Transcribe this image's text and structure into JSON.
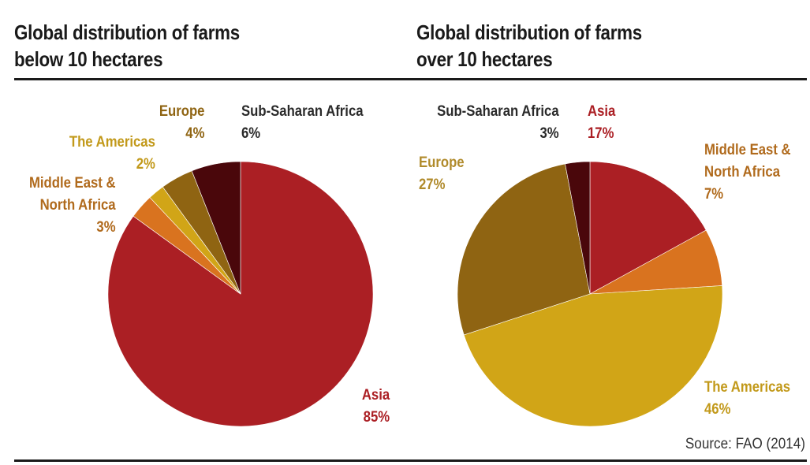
{
  "source": "Source: FAO (2014)",
  "chart_data": [
    {
      "type": "pie",
      "title_lines": [
        "Global distribution of farms",
        "below 10 hectares"
      ],
      "slices": [
        {
          "name": "Asia",
          "value": 85,
          "label": "85%",
          "color": "#ab1f24",
          "label_color": "#ab1f24"
        },
        {
          "name_lines": [
            "Middle East &",
            "North Africa"
          ],
          "value": 3,
          "label": "3%",
          "color": "#d9731f",
          "label_color": "#b06a1c"
        },
        {
          "name": "The Americas",
          "value": 2,
          "label": "2%",
          "color": "#d1a517",
          "label_color": "#c2991a"
        },
        {
          "name": "Europe",
          "value": 4,
          "label": "4%",
          "color": "#8f6412",
          "label_color": "#8f6412"
        },
        {
          "name": "Sub-Saharan Africa",
          "value": 6,
          "label": "6%",
          "color": "#4a070b",
          "label_color": "#2a2a2a"
        }
      ]
    },
    {
      "type": "pie",
      "title_lines": [
        "Global distribution of farms",
        "over 10 hectares"
      ],
      "slices": [
        {
          "name": "Asia",
          "value": 17,
          "label": "17%",
          "color": "#ab1f24",
          "label_color": "#ab1f24"
        },
        {
          "name_lines": [
            "Middle East &",
            "North Africa"
          ],
          "value": 7,
          "label": "7%",
          "color": "#d9731f",
          "label_color": "#b06a1c"
        },
        {
          "name": "The Americas",
          "value": 46,
          "label": "46%",
          "color": "#d1a517",
          "label_color": "#c2991a"
        },
        {
          "name": "Europe",
          "value": 27,
          "label": "27%",
          "color": "#8f6412",
          "label_color": "#b08a2a"
        },
        {
          "name": "Sub-Saharan Africa",
          "value": 3,
          "label": "3%",
          "color": "#4a070b",
          "label_color": "#2a2a2a"
        }
      ]
    }
  ]
}
